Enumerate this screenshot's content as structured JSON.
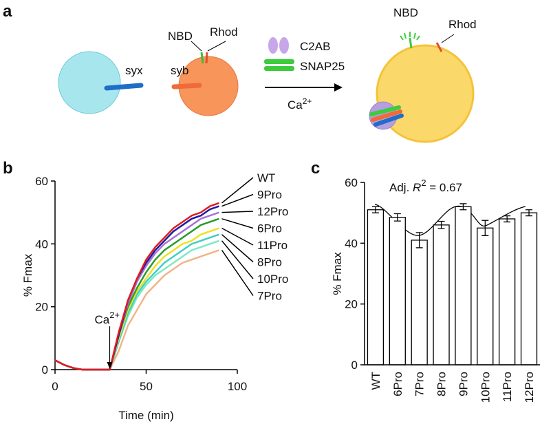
{
  "panels": [
    "a",
    "b",
    "c"
  ],
  "diagram": {
    "syx": "syx",
    "syb": "syb",
    "nbd": "NBD",
    "rhod": "Rhod",
    "c2ab": "C2AB",
    "snap25": "SNAP25",
    "calcium": {
      "base": "Ca",
      "sup": "2+"
    },
    "nbd_right": "NBD",
    "rhod_right": "Rhod"
  },
  "chart_data": [
    {
      "type": "line",
      "xlabel": "Time (min)",
      "ylabel": "% Fmax",
      "xlim": [
        0,
        100
      ],
      "xticks": [
        0,
        50,
        100
      ],
      "ylim": [
        0,
        60
      ],
      "yticks": [
        0,
        20,
        40,
        60
      ],
      "annotation": {
        "text": {
          "base": "Ca",
          "sup": "2+"
        },
        "x": 30
      },
      "x": [
        0,
        5,
        10,
        15,
        20,
        25,
        30,
        35,
        40,
        45,
        50,
        55,
        60,
        65,
        70,
        75,
        80,
        85,
        90
      ],
      "series": [
        {
          "name": "7Pro",
          "color": "#f2b487",
          "values": [
            3,
            1.5,
            0.5,
            0,
            0,
            0,
            0,
            6,
            14,
            19,
            24,
            27,
            30,
            32,
            34,
            35,
            36,
            37,
            38
          ]
        },
        {
          "name": "10Pro",
          "color": "#7fe8c4",
          "values": [
            3,
            1.5,
            0.5,
            0,
            0,
            0,
            0,
            9,
            17,
            23,
            27,
            30,
            32,
            34,
            36,
            38,
            39,
            40,
            41
          ]
        },
        {
          "name": "8Pro",
          "color": "#3fcfc6",
          "values": [
            3,
            1.5,
            0.5,
            0,
            0,
            0,
            0,
            9,
            18,
            24,
            28,
            31,
            34,
            36,
            38,
            40,
            41,
            42,
            43
          ]
        },
        {
          "name": "11Pro",
          "color": "#ece21e",
          "values": [
            3,
            1.5,
            0.5,
            0,
            0,
            0,
            0,
            10,
            19,
            25,
            29,
            33,
            36,
            38,
            40,
            41,
            43,
            44,
            45
          ]
        },
        {
          "name": "6Pro",
          "color": "#2b9b2b",
          "values": [
            3,
            1.5,
            0.5,
            0,
            0,
            0,
            0,
            11,
            20,
            26,
            31,
            35,
            38,
            40,
            42,
            44,
            46,
            47,
            48
          ]
        },
        {
          "name": "12Pro",
          "color": "#a574d6",
          "values": [
            3,
            1.5,
            0.5,
            0,
            0,
            0,
            0,
            11,
            21,
            28,
            33,
            37,
            40,
            42,
            44,
            46,
            48,
            49,
            50
          ]
        },
        {
          "name": "9Pro",
          "color": "#1c1ca2",
          "values": [
            3,
            1.5,
            0.5,
            0,
            0,
            0,
            0,
            11,
            22,
            29,
            34,
            38,
            41,
            44,
            46,
            48,
            49,
            51,
            52
          ]
        },
        {
          "name": "WT",
          "color": "#e41a1c",
          "values": [
            3,
            1.5,
            0.5,
            0,
            0,
            0,
            0,
            12,
            22,
            29,
            35,
            39,
            42,
            45,
            47,
            49,
            50,
            52,
            53
          ]
        }
      ],
      "legend_order": [
        "WT",
        "9Pro",
        "12Pro",
        "6Pro",
        "11Pro",
        "8Pro",
        "10Pro",
        "7Pro"
      ]
    },
    {
      "type": "bar",
      "ylabel": "% Fmax",
      "ylim": [
        0,
        60
      ],
      "yticks": [
        0,
        20,
        40,
        60
      ],
      "annotation": {
        "prefix": "Adj. ",
        "var": "R",
        "sup": "2",
        "suffix": " = 0.67"
      },
      "categories": [
        "WT",
        "6Pro",
        "7Pro",
        "8Pro",
        "9Pro",
        "10Pro",
        "11Pro",
        "12Pro"
      ],
      "values": [
        51,
        48.5,
        41,
        46,
        52,
        45,
        48,
        50
      ],
      "errors": [
        1,
        1.2,
        2.5,
        1.2,
        1,
        2.5,
        1,
        1
      ],
      "color": "#ffffff"
    }
  ]
}
